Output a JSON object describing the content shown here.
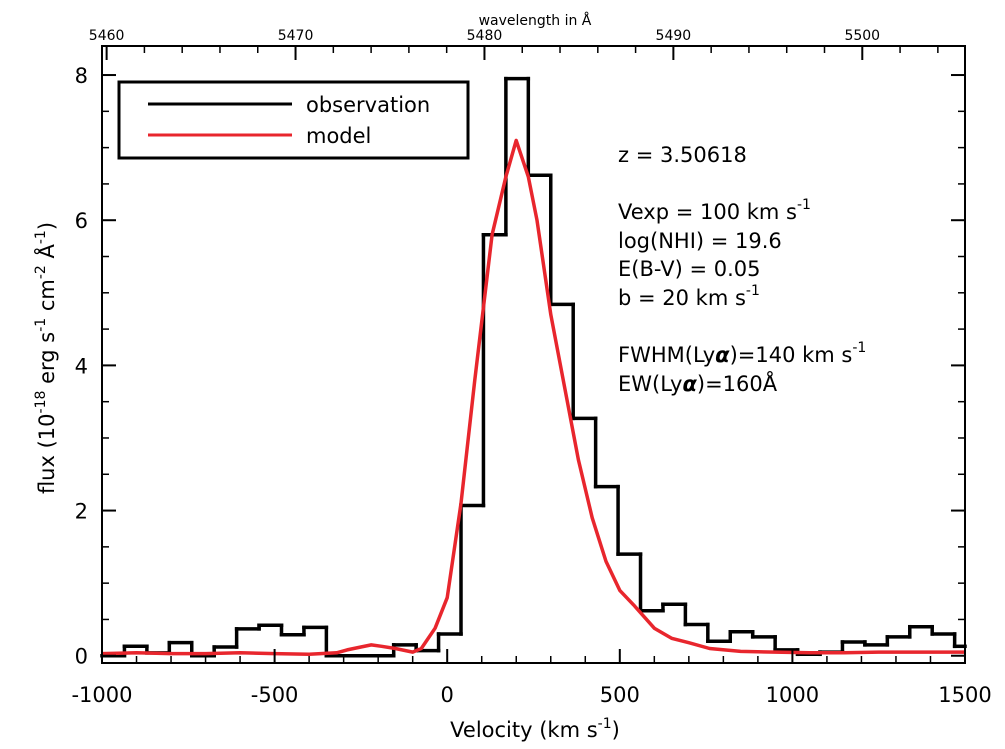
{
  "chart_data": {
    "type": "line",
    "xlabel": "Velocity (km s",
    "xlabel_sup": "-1",
    "xlabel_close": ")",
    "ylabel": "flux (10",
    "ylabel_sup1": "-18",
    "ylabel_mid1": " erg s",
    "ylabel_sup2": "-1",
    "ylabel_mid2": " cm",
    "ylabel_sup3": "-2",
    "ylabel_mid3": " Å",
    "ylabel_sup4": "-1",
    "ylabel_close": ")",
    "top_axis_label": "wavelength in Å",
    "xlim": [
      -1000,
      1500
    ],
    "ylim": [
      -0.1,
      8.4
    ],
    "x_ticks": [
      "-1000",
      "-500",
      "0",
      "500",
      "1000",
      "1500"
    ],
    "y_ticks": [
      "0",
      "2",
      "4",
      "6",
      "8"
    ],
    "top_ticks": [
      "5460",
      "5470",
      "5480",
      "5490",
      "5500"
    ],
    "top_tick_wavelengths": [
      5460,
      5470,
      5480,
      5490,
      5500
    ],
    "legend": [
      {
        "label": "observation",
        "color": "#000000"
      },
      {
        "label": "model",
        "color": "#e8262d"
      }
    ],
    "annotations": {
      "z": "z = 3.50618",
      "vexp": "Vexp = 100 km s",
      "vexp_sup": "-1",
      "lognhi": "log(NHI) = 19.6",
      "ebv": "E(B-V) = 0.05",
      "b": "b = 20 km s",
      "b_sup": "-1",
      "fwhm_pre": "FWHM(Ly",
      "fwhm_alpha": "α",
      "fwhm_post": ")=140 km s",
      "fwhm_sup": "-1",
      "ew_pre": "EW(Ly",
      "ew_alpha": "α",
      "ew_post": ")=160Å"
    },
    "series": [
      {
        "name": "observation",
        "color": "#000000",
        "style": "step",
        "bin_edges": [
          -1000,
          -935,
          -870,
          -805,
          -740,
          -675,
          -610,
          -545,
          -480,
          -415,
          -350,
          -285,
          -220,
          -155,
          -90,
          -25,
          40,
          105,
          170,
          235,
          300,
          365,
          430,
          495,
          560,
          625,
          690,
          755,
          820,
          885,
          950,
          1015,
          1080,
          1145,
          1210,
          1275,
          1340,
          1405,
          1470,
          1500
        ],
        "values": [
          0.0,
          0.13,
          0.04,
          0.18,
          0.0,
          0.12,
          0.37,
          0.42,
          0.29,
          0.39,
          0.0,
          0.0,
          0.0,
          0.15,
          0.07,
          0.3,
          2.07,
          5.8,
          7.95,
          6.62,
          4.84,
          3.27,
          2.33,
          1.4,
          0.62,
          0.71,
          0.43,
          0.2,
          0.33,
          0.26,
          0.08,
          0.02,
          0.05,
          0.19,
          0.15,
          0.26,
          0.4,
          0.3,
          0.13
        ]
      },
      {
        "name": "model",
        "color": "#e8262d",
        "style": "line",
        "x": [
          -1000,
          -900,
          -800,
          -700,
          -600,
          -500,
          -400,
          -320,
          -290,
          -250,
          -220,
          -190,
          -150,
          -100,
          -75,
          -35,
          0,
          40,
          80,
          130,
          170,
          200,
          235,
          260,
          300,
          340,
          380,
          420,
          460,
          500,
          540,
          600,
          650,
          700,
          760,
          850,
          950,
          1050,
          1150,
          1250,
          1350,
          1450,
          1500
        ],
        "values": [
          0.03,
          0.04,
          0.03,
          0.03,
          0.04,
          0.03,
          0.02,
          0.04,
          0.08,
          0.12,
          0.15,
          0.13,
          0.1,
          0.05,
          0.1,
          0.38,
          0.8,
          2.1,
          3.8,
          5.8,
          6.6,
          7.1,
          6.6,
          6.0,
          4.7,
          3.7,
          2.7,
          1.9,
          1.3,
          0.9,
          0.7,
          0.38,
          0.24,
          0.18,
          0.1,
          0.06,
          0.05,
          0.04,
          0.04,
          0.05,
          0.05,
          0.05,
          0.05
        ]
      }
    ]
  }
}
